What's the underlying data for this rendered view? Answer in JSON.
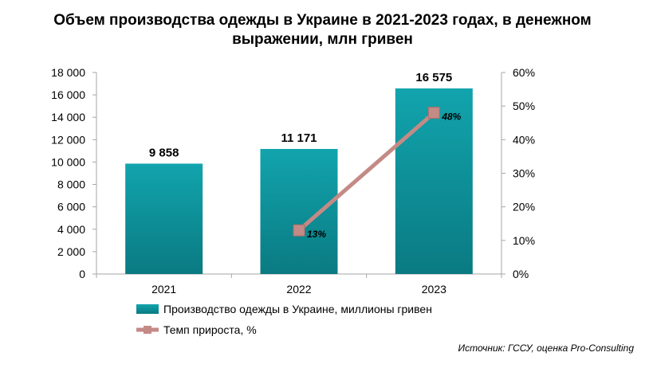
{
  "title_line1": "Объем производства одежды в Украине в 2021-2023 годах, в денежном",
  "title_line2": "выражении, млн гривен",
  "source": "Источник: ГССУ, оценка Pro-Consulting",
  "colors": {
    "bar": "#12a4ad",
    "bar_dark": "#0a7a82",
    "line": "#c48a85",
    "marker": "#c48a85",
    "axis": "#a6a6a6"
  },
  "chart_data": {
    "type": "bar",
    "categories": [
      "2021",
      "2022",
      "2023"
    ],
    "series": [
      {
        "name": "Производство одежды в Украине, миллионы гривен",
        "type": "bar",
        "axis": "left",
        "values": [
          9858,
          11171,
          16575
        ],
        "labels": [
          "9 858",
          "11 171",
          "16 575"
        ]
      },
      {
        "name": "Темп прироста, %",
        "type": "line",
        "axis": "right",
        "values": [
          null,
          13,
          48
        ],
        "labels": [
          null,
          "13%",
          "48%"
        ]
      }
    ],
    "y_left": {
      "min": 0,
      "max": 18000,
      "step": 2000,
      "tick_labels": [
        "0",
        "2 000",
        "4 000",
        "6 000",
        "8 000",
        "10 000",
        "12 000",
        "14 000",
        "16 000",
        "18 000"
      ]
    },
    "y_right": {
      "min": 0,
      "max": 60,
      "step": 10,
      "tick_labels": [
        "0%",
        "10%",
        "20%",
        "30%",
        "40%",
        "50%",
        "60%"
      ]
    },
    "grid": false,
    "legend_position": "bottom"
  }
}
